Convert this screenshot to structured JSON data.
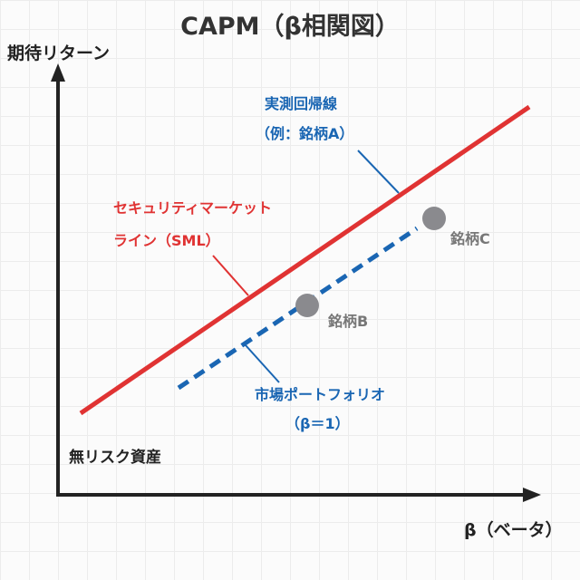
{
  "title": "CAPM（β相関図）",
  "y_axis_label": "期待リターン",
  "x_axis_label": "β（ベータ）",
  "risk_free_label": "無リスク資産",
  "regression_label": {
    "line1": "実測回帰線",
    "line2": "（例：銘柄A）"
  },
  "sml_label": {
    "line1": "セキュリティマーケット",
    "line2": "ライン（SML）"
  },
  "market_label": {
    "line1": "市場ポートフォリオ",
    "line2": "（β＝1）"
  },
  "point_b_label": "銘柄B",
  "point_c_label": "銘柄C",
  "colors": {
    "sml": "#e03333",
    "regression": "#1a66b3",
    "points": "#8a8a8e",
    "axis": "#222222",
    "title": "#333333"
  }
}
